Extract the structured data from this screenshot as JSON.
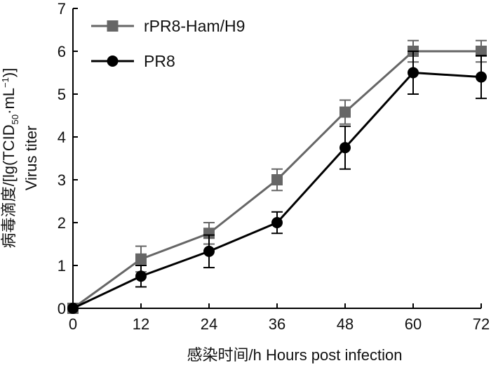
{
  "chart_data": {
    "type": "line",
    "title": "",
    "xlabel": "感染时间/h  Hours post infection",
    "ylabel_cn": "病毒滴度/[lg(TCID",
    "ylabel_cn_sub": "50",
    "ylabel_cn_tail": "·mL",
    "ylabel_cn_sup": "−1",
    "ylabel_cn_end": ")]",
    "ylabel_en": "Virus titer",
    "xlim": [
      0,
      72
    ],
    "ylim": [
      0,
      7
    ],
    "xticks": [
      "0",
      "12",
      "24",
      "36",
      "48",
      "60",
      "72"
    ],
    "yticks": [
      "0",
      "1",
      "2",
      "3",
      "4",
      "5",
      "6",
      "7"
    ],
    "x": [
      0,
      12,
      24,
      36,
      48,
      60,
      72
    ],
    "grid": false,
    "legend_position": "top-left",
    "series": [
      {
        "name": "rPR8-Ham/H9",
        "color": "#666666",
        "marker": "square",
        "values": [
          0,
          1.15,
          1.75,
          3.0,
          4.58,
          6.0,
          6.0
        ],
        "errors": [
          0,
          0.3,
          0.25,
          0.25,
          0.28,
          0.25,
          0.25
        ]
      },
      {
        "name": "PR8",
        "color": "#000000",
        "marker": "circle",
        "values": [
          0,
          0.75,
          1.33,
          2.0,
          3.75,
          5.5,
          5.4
        ],
        "errors": [
          0,
          0.25,
          0.38,
          0.25,
          0.5,
          0.5,
          0.5
        ]
      }
    ]
  }
}
